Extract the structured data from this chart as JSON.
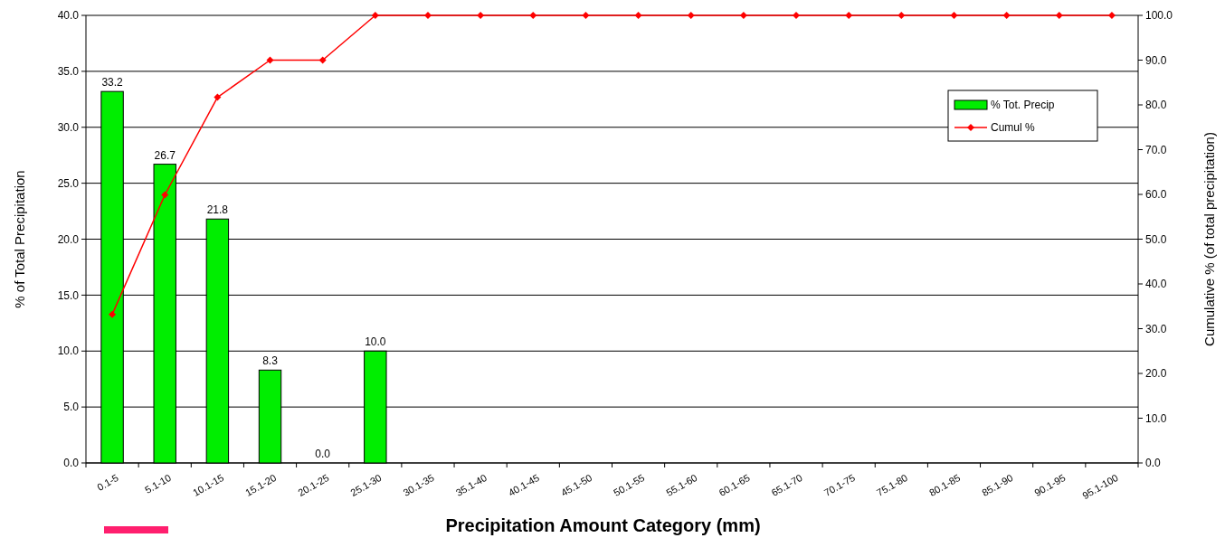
{
  "chart_data": {
    "type": "bar",
    "xlabel": "Precipitation Amount Category (mm)",
    "ylabel": "% of Total  Precipitation",
    "y2label": "Cumulative % (of total precipitation)",
    "categories": [
      "0.1-5",
      "5.1-10",
      "10.1-15",
      "15.1-20",
      "20.1-25",
      "25.1-30",
      "30.1-35",
      "35.1-40",
      "40.1-45",
      "45.1-50",
      "50.1-55",
      "55.1-60",
      "60.1-65",
      "65.1-70",
      "70.1-75",
      "75.1-80",
      "80.1-85",
      "85.1-90",
      "90.1-95",
      "95.1-100"
    ],
    "series": [
      {
        "name": "% Tot. Precip",
        "color": "#00ee00",
        "values": [
          33.2,
          26.7,
          21.8,
          8.3,
          0.0,
          10.0,
          null,
          null,
          null,
          null,
          null,
          null,
          null,
          null,
          null,
          null,
          null,
          null,
          null,
          null
        ],
        "value_labels": [
          "33.2",
          "26.7",
          "21.8",
          "8.3",
          "0.0",
          "10.0",
          null,
          null,
          null,
          null,
          null,
          null,
          null,
          null,
          null,
          null,
          null,
          null,
          null,
          null
        ]
      },
      {
        "name": "Cumul %",
        "type": "line",
        "axis": "y2",
        "color": "#ff0000",
        "marker": "diamond",
        "values": [
          33.2,
          59.9,
          81.7,
          90.0,
          90.0,
          100,
          100,
          100,
          100,
          100,
          100,
          100,
          100,
          100,
          100,
          100,
          100,
          100,
          100,
          100
        ]
      }
    ],
    "ylim": [
      0,
      40
    ],
    "yticks": [
      {
        "value": 0,
        "label": "0.0"
      },
      {
        "value": 5,
        "label": "5.0"
      },
      {
        "value": 10,
        "label": "10.0"
      },
      {
        "value": 15,
        "label": "15.0"
      },
      {
        "value": 20,
        "label": "20.0"
      },
      {
        "value": 25,
        "label": "25.0"
      },
      {
        "value": 30,
        "label": "30.0"
      },
      {
        "value": 35,
        "label": "35.0"
      },
      {
        "value": 40,
        "label": "40.0"
      }
    ],
    "y2lim": [
      0,
      100
    ],
    "y2ticks": [
      {
        "value": 0,
        "label": "0.0"
      },
      {
        "value": 10,
        "label": "10.0"
      },
      {
        "value": 20,
        "label": "20.0"
      },
      {
        "value": 30,
        "label": "30.0"
      },
      {
        "value": 40,
        "label": "40.0"
      },
      {
        "value": 50,
        "label": "50.0"
      },
      {
        "value": 60,
        "label": "60.0"
      },
      {
        "value": 70,
        "label": "70.0"
      },
      {
        "value": 80,
        "label": "80.0"
      },
      {
        "value": 90,
        "label": "90.0"
      },
      {
        "value": 100,
        "label": "100.0"
      }
    ],
    "grid": "y",
    "legend": "top right"
  }
}
